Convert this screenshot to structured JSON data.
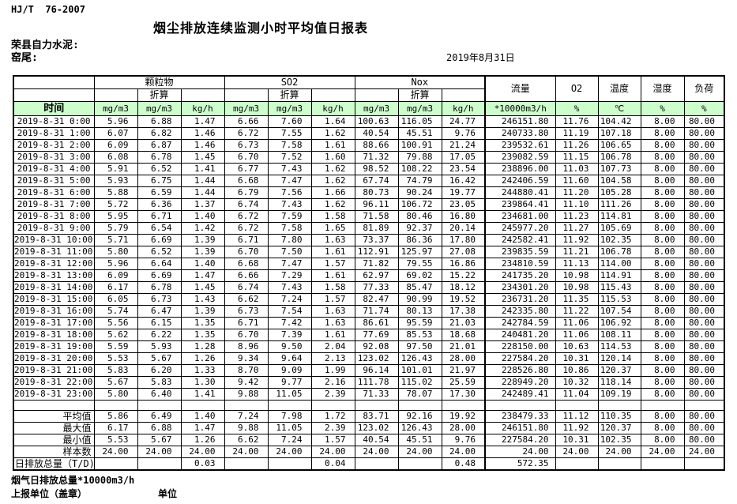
{
  "meta": {
    "standard": "HJ/T  76-2007",
    "title": "烟尘排放连续监测小时平均值日报表",
    "company": "荣县自力水泥:",
    "location": "窑尾:",
    "date": "2019年8月31日"
  },
  "table": {
    "time_label": "时间",
    "conv_label": "折算",
    "groups": [
      {
        "label": "颗粒物"
      },
      {
        "label": "SO2"
      },
      {
        "label": "Nox"
      }
    ],
    "flow_label": "流量",
    "o2_label": "O2",
    "temp_label": "温度",
    "humidity_label": "湿度",
    "load_label": "负荷",
    "units": [
      "mg/m3",
      "mg/m3",
      "kg/h",
      "mg/m3",
      "mg/m3",
      "kg/h",
      "mg/m3",
      "mg/m3",
      "kg/h",
      "*10000m3/h",
      "%",
      "℃",
      "%",
      "%"
    ],
    "rows": [
      [
        "2019-8-31 0:00",
        "5.96",
        "6.88",
        "1.47",
        "6.66",
        "7.60",
        "1.64",
        "100.63",
        "116.05",
        "24.77",
        "246151.80",
        "11.76",
        "104.42",
        "8.00",
        "80.00"
      ],
      [
        "2019-8-31 1:00",
        "6.07",
        "6.82",
        "1.46",
        "6.72",
        "7.55",
        "1.62",
        "40.54",
        "45.51",
        "9.76",
        "240733.80",
        "11.19",
        "107.18",
        "8.00",
        "80.00"
      ],
      [
        "2019-8-31 2:00",
        "6.09",
        "6.87",
        "1.46",
        "6.73",
        "7.58",
        "1.61",
        "88.66",
        "100.91",
        "21.24",
        "239532.61",
        "11.26",
        "106.65",
        "8.00",
        "80.00"
      ],
      [
        "2019-8-31 3:00",
        "6.08",
        "6.78",
        "1.45",
        "6.70",
        "7.52",
        "1.60",
        "71.32",
        "79.88",
        "17.05",
        "239082.59",
        "11.15",
        "106.78",
        "8.00",
        "80.00"
      ],
      [
        "2019-8-31 4:00",
        "5.91",
        "6.52",
        "1.41",
        "6.77",
        "7.43",
        "1.62",
        "98.52",
        "108.22",
        "23.54",
        "238896.00",
        "11.03",
        "107.73",
        "8.00",
        "80.00"
      ],
      [
        "2019-8-31 5:00",
        "5.93",
        "6.75",
        "1.44",
        "6.68",
        "7.47",
        "1.62",
        "67.74",
        "74.79",
        "16.42",
        "242406.59",
        "11.60",
        "104.58",
        "8.00",
        "80.00"
      ],
      [
        "2019-8-31 6:00",
        "5.88",
        "6.59",
        "1.44",
        "6.79",
        "7.56",
        "1.66",
        "80.73",
        "90.24",
        "19.77",
        "244880.41",
        "11.20",
        "105.28",
        "8.00",
        "80.00"
      ],
      [
        "2019-8-31 7:00",
        "5.72",
        "6.36",
        "1.37",
        "6.74",
        "7.43",
        "1.62",
        "96.11",
        "106.72",
        "23.05",
        "239864.41",
        "11.10",
        "111.26",
        "8.00",
        "80.00"
      ],
      [
        "2019-8-31 8:00",
        "5.95",
        "6.71",
        "1.40",
        "6.72",
        "7.59",
        "1.58",
        "71.58",
        "80.46",
        "16.80",
        "234681.00",
        "11.23",
        "114.81",
        "8.00",
        "80.00"
      ],
      [
        "2019-8-31 9:00",
        "5.79",
        "6.54",
        "1.42",
        "6.72",
        "7.58",
        "1.65",
        "81.89",
        "92.37",
        "20.14",
        "245977.20",
        "11.27",
        "105.69",
        "8.00",
        "80.00"
      ],
      [
        "2019-8-31 10:00",
        "5.71",
        "6.69",
        "1.39",
        "6.71",
        "7.80",
        "1.63",
        "73.37",
        "86.36",
        "17.80",
        "242582.41",
        "11.92",
        "102.35",
        "8.00",
        "80.00"
      ],
      [
        "2019-8-31 11:00",
        "5.80",
        "6.52",
        "1.39",
        "6.70",
        "7.50",
        "1.61",
        "112.91",
        "125.97",
        "27.08",
        "239835.59",
        "11.21",
        "106.78",
        "8.00",
        "80.00"
      ],
      [
        "2019-8-31 12:00",
        "5.96",
        "6.64",
        "1.40",
        "6.68",
        "7.47",
        "1.57",
        "71.82",
        "79.55",
        "16.86",
        "234810.59",
        "11.13",
        "114.00",
        "8.00",
        "80.00"
      ],
      [
        "2019-8-31 13:00",
        "6.09",
        "6.69",
        "1.47",
        "6.66",
        "7.29",
        "1.61",
        "62.97",
        "69.02",
        "15.22",
        "241735.20",
        "10.98",
        "114.91",
        "8.00",
        "80.00"
      ],
      [
        "2019-8-31 14:00",
        "6.17",
        "6.78",
        "1.45",
        "6.74",
        "7.43",
        "1.58",
        "77.33",
        "85.47",
        "18.12",
        "234301.20",
        "10.98",
        "115.43",
        "8.00",
        "80.00"
      ],
      [
        "2019-8-31 15:00",
        "6.05",
        "6.73",
        "1.43",
        "6.62",
        "7.24",
        "1.57",
        "82.47",
        "90.99",
        "19.52",
        "236731.20",
        "11.35",
        "115.53",
        "8.00",
        "80.00"
      ],
      [
        "2019-8-31 16:00",
        "5.74",
        "6.47",
        "1.39",
        "6.73",
        "7.54",
        "1.63",
        "71.74",
        "80.13",
        "17.38",
        "242335.80",
        "11.22",
        "107.54",
        "8.00",
        "80.00"
      ],
      [
        "2019-8-31 17:00",
        "5.56",
        "6.15",
        "1.35",
        "6.71",
        "7.42",
        "1.63",
        "86.61",
        "95.59",
        "21.03",
        "242784.59",
        "11.06",
        "106.92",
        "8.00",
        "80.00"
      ],
      [
        "2019-8-31 18:00",
        "5.62",
        "6.22",
        "1.35",
        "6.70",
        "7.39",
        "1.61",
        "77.69",
        "85.53",
        "18.68",
        "240481.20",
        "11.06",
        "108.11",
        "8.00",
        "80.00"
      ],
      [
        "2019-8-31 19:00",
        "5.59",
        "5.93",
        "1.28",
        "8.96",
        "9.50",
        "2.04",
        "92.08",
        "97.50",
        "21.01",
        "228150.00",
        "10.63",
        "114.53",
        "8.00",
        "80.00"
      ],
      [
        "2019-8-31 20:00",
        "5.53",
        "5.67",
        "1.26",
        "9.34",
        "9.64",
        "2.13",
        "123.02",
        "126.43",
        "28.00",
        "227584.20",
        "10.31",
        "120.14",
        "8.00",
        "80.00"
      ],
      [
        "2019-8-31 21:00",
        "5.83",
        "6.20",
        "1.33",
        "8.70",
        "9.09",
        "1.99",
        "96.14",
        "101.01",
        "21.97",
        "228526.80",
        "10.86",
        "120.37",
        "8.00",
        "80.00"
      ],
      [
        "2019-8-31 22:00",
        "5.67",
        "5.83",
        "1.30",
        "9.42",
        "9.77",
        "2.16",
        "111.78",
        "115.02",
        "25.59",
        "228949.20",
        "10.32",
        "118.14",
        "8.00",
        "80.00"
      ],
      [
        "2019-8-31 23:00",
        "5.80",
        "6.40",
        "1.41",
        "9.88",
        "11.05",
        "2.39",
        "71.33",
        "78.07",
        "17.30",
        "242489.41",
        "11.04",
        "109.19",
        "8.00",
        "80.00"
      ]
    ],
    "summary": [
      {
        "label": "平均值",
        "align": "right",
        "values": [
          "5.86",
          "6.49",
          "1.40",
          "7.24",
          "7.98",
          "1.72",
          "83.71",
          "92.16",
          "19.92",
          "238479.33",
          "11.12",
          "110.35",
          "8.00",
          "80.00"
        ]
      },
      {
        "label": "最大值",
        "align": "right",
        "values": [
          "6.17",
          "6.88",
          "1.47",
          "9.88",
          "11.05",
          "2.39",
          "123.02",
          "126.43",
          "28.00",
          "246151.80",
          "11.92",
          "120.37",
          "8.00",
          "80.00"
        ]
      },
      {
        "label": "最小值",
        "align": "right",
        "values": [
          "5.53",
          "5.67",
          "1.26",
          "6.62",
          "7.24",
          "1.57",
          "40.54",
          "45.51",
          "9.76",
          "227584.20",
          "10.31",
          "102.35",
          "8.00",
          "80.00"
        ]
      },
      {
        "label": "样本数",
        "align": "right",
        "values": [
          "24.00",
          "24.00",
          "24.00",
          "24.00",
          "24.00",
          "24.00",
          "24.00",
          "24.00",
          "24.00",
          "24.00",
          "24.00",
          "24.00",
          "24.00",
          "24.00"
        ]
      },
      {
        "label": "日排放总量（T/D)",
        "align": "left",
        "values": [
          "",
          "",
          "0.03",
          "",
          "",
          "0.04",
          "",
          "",
          "0.48",
          "572.35",
          "",
          "",
          "",
          ""
        ]
      }
    ]
  },
  "footer": {
    "note": "烟气日排放总量*10000m3/h",
    "report_unit": "上报单位（盖章）",
    "unit": "单位"
  },
  "colors": {
    "header_green": "#ccffcc",
    "border": "#000000",
    "background": "#ffffff"
  }
}
